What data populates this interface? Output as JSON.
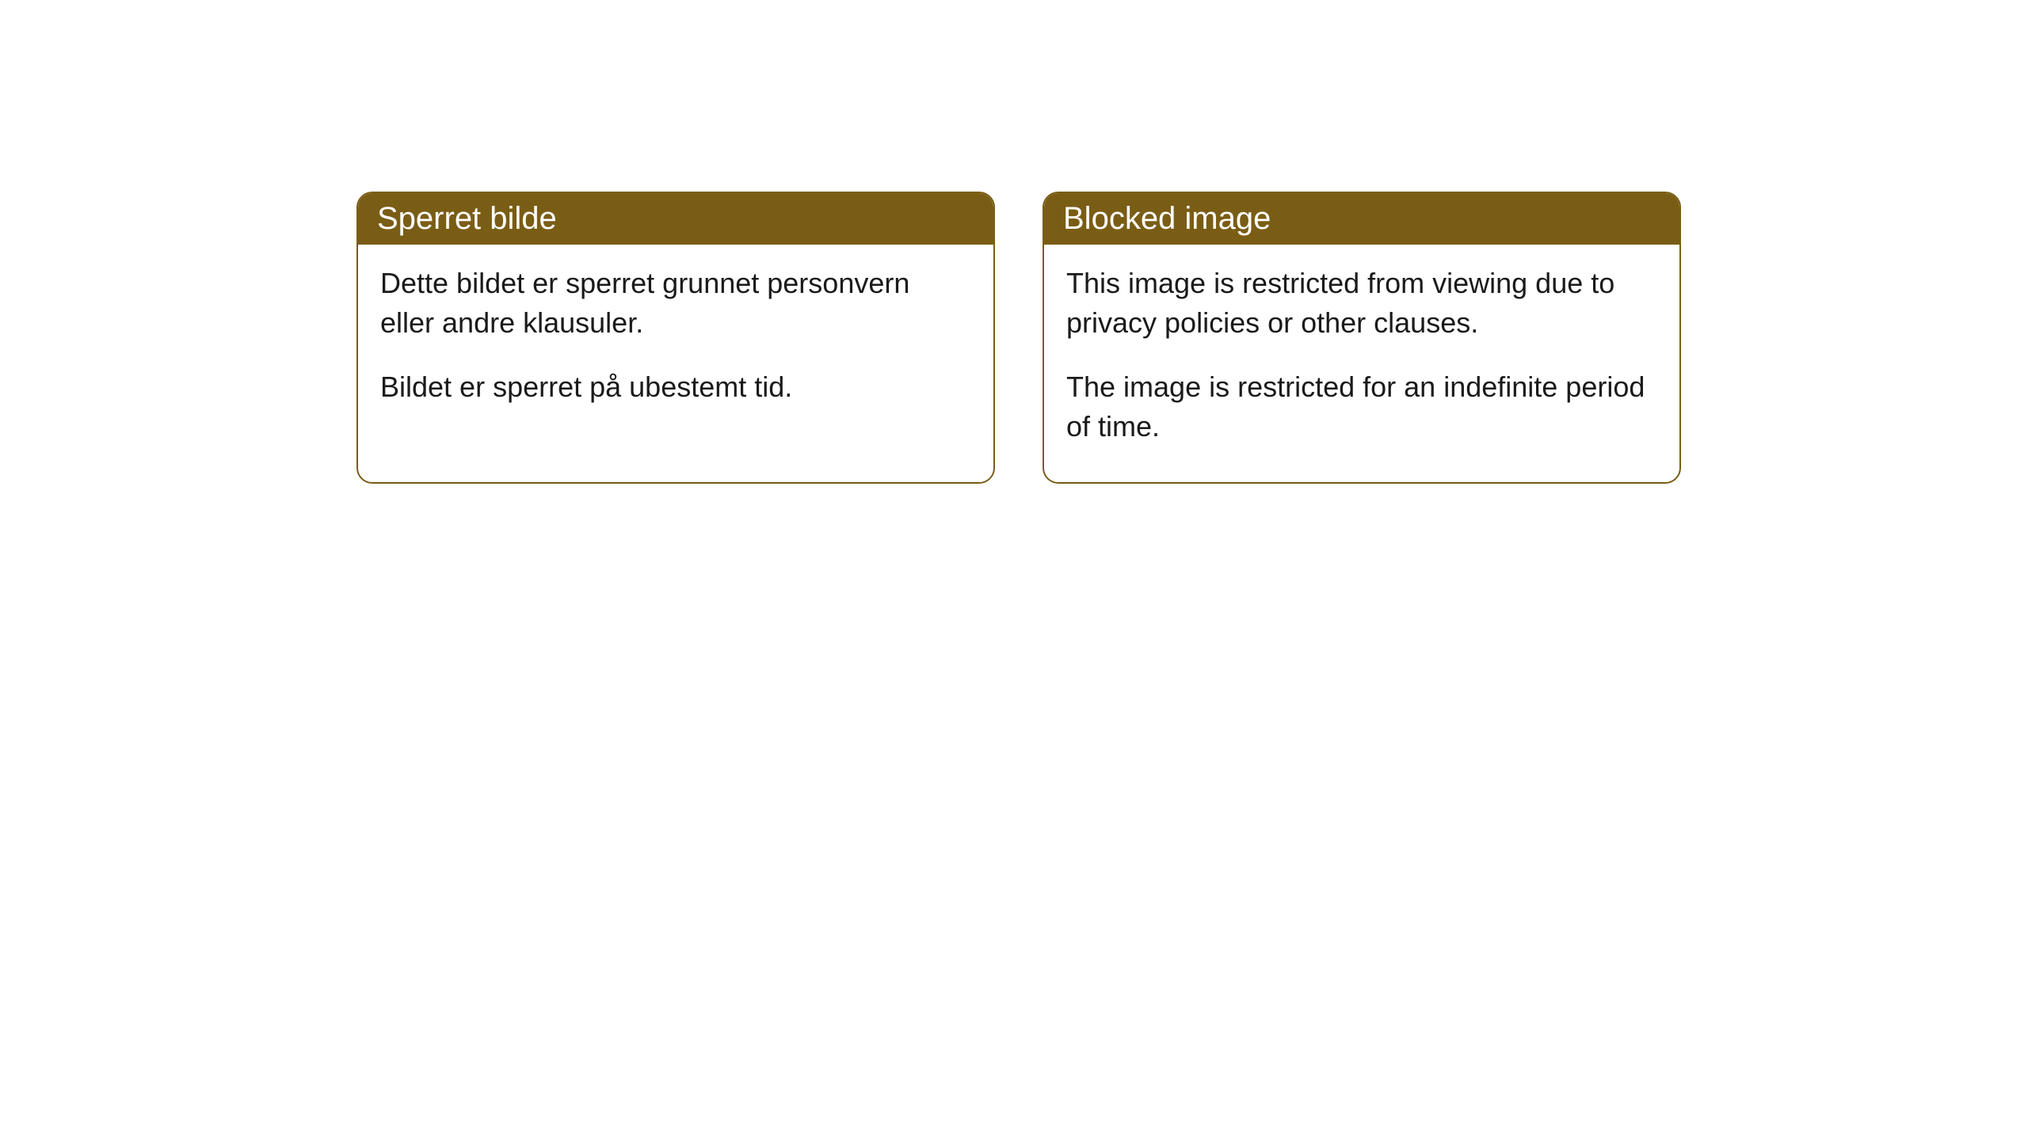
{
  "cards": [
    {
      "title": "Sperret bilde",
      "paragraph1": "Dette bildet er sperret grunnet personvern eller andre klausuler.",
      "paragraph2": "Bildet er sperret på ubestemt tid."
    },
    {
      "title": "Blocked image",
      "paragraph1": "This image is restricted from viewing due to privacy policies or other clauses.",
      "paragraph2": "The image is restricted for an indefinite period of time."
    }
  ],
  "styling": {
    "header_background": "#7a5d15",
    "header_text_color": "#ffffff",
    "card_border_color": "#7a5d15",
    "card_background": "#ffffff",
    "body_text_color": "#1a1a1a",
    "border_radius": 20,
    "header_fontsize": 40,
    "body_fontsize": 36
  }
}
